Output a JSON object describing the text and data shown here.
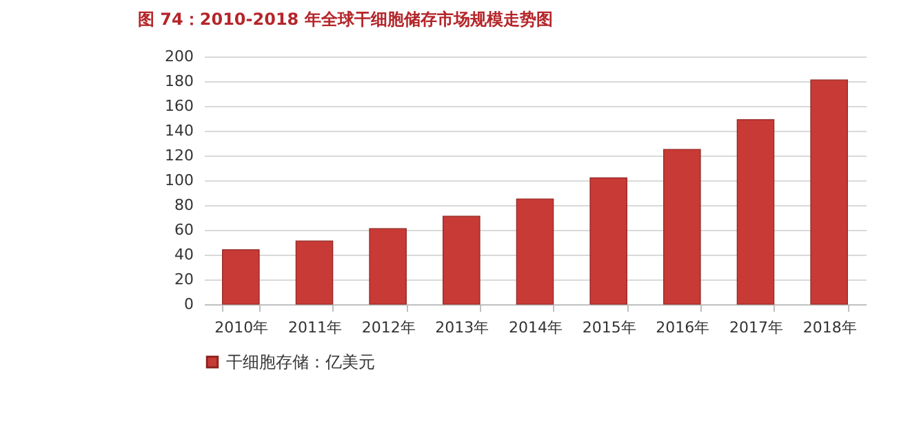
{
  "chart_data": {
    "type": "bar",
    "title": "图 74：2010-2018 年全球干细胞储存市场规模走势图",
    "categories": [
      "2010年",
      "2011年",
      "2012年",
      "2013年",
      "2014年",
      "2015年",
      "2016年",
      "2017年",
      "2018年"
    ],
    "series": [
      {
        "name": "干细胞存储：亿美元",
        "color": "#c83a35",
        "values": [
          44,
          51,
          61,
          71,
          85,
          102,
          125,
          149,
          181
        ]
      }
    ],
    "ylim": [
      0,
      200
    ],
    "yticks": [
      0,
      20,
      40,
      60,
      80,
      100,
      120,
      140,
      160,
      180,
      200
    ],
    "grid": "y",
    "legend": "bottom"
  }
}
